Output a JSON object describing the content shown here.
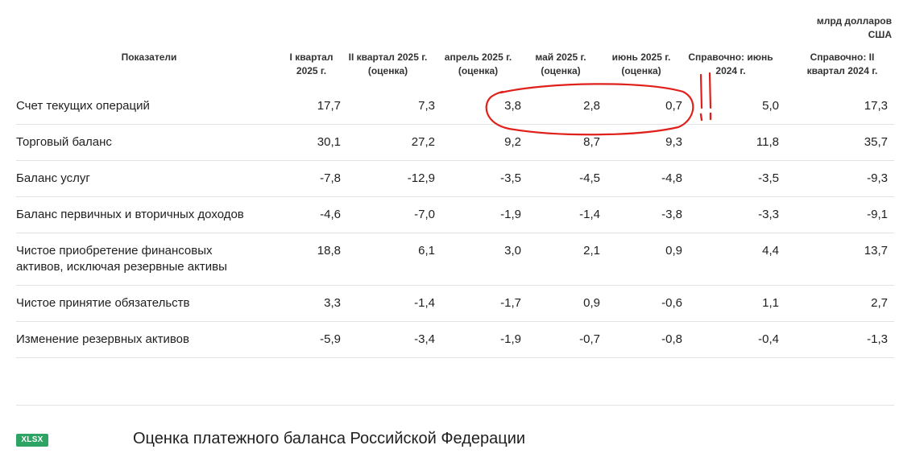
{
  "unit_label": "млрд долларов США",
  "columns": [
    "Показатели",
    "I квартал 2025 г.",
    "II квартал 2025 г. (оценка)",
    "апрель 2025 г. (оценка)",
    "май 2025 г. (оценка)",
    "июнь 2025 г. (оценка)",
    "Справочно: июнь 2024 г.",
    "Справочно: II квартал 2024 г."
  ],
  "rows": [
    {
      "name": "Счет текущих операций",
      "values": [
        "17,7",
        "7,3",
        "3,8",
        "2,8",
        "0,7",
        "5,0",
        "17,3"
      ]
    },
    {
      "name": "Торговый баланс",
      "values": [
        "30,1",
        "27,2",
        "9,2",
        "8,7",
        "9,3",
        "11,8",
        "35,7"
      ]
    },
    {
      "name": "Баланс услуг",
      "values": [
        "-7,8",
        "-12,9",
        "-3,5",
        "-4,5",
        "-4,8",
        "-3,5",
        "-9,3"
      ]
    },
    {
      "name": "Баланс первичных и вторичных доходов",
      "values": [
        "-4,6",
        "-7,0",
        "-1,9",
        "-1,4",
        "-3,8",
        "-3,3",
        "-9,1"
      ]
    },
    {
      "name": "Чистое приобретение финансовых активов, исключая резервные активы",
      "values": [
        "18,8",
        "6,1",
        "3,0",
        "2,1",
        "0,9",
        "4,4",
        "13,7"
      ]
    },
    {
      "name": "Чистое принятие обязательств",
      "values": [
        "3,3",
        "-1,4",
        "-1,7",
        "0,9",
        "-0,6",
        "1,1",
        "2,7"
      ]
    },
    {
      "name": "Изменение резервных активов",
      "values": [
        "-5,9",
        "-3,4",
        "-1,9",
        "-0,7",
        "-0,8",
        "-0,4",
        "-1,3"
      ]
    }
  ],
  "attachment": {
    "badge": "XLSX",
    "title": "Оценка платежного баланса Российской Федерации"
  },
  "colors": {
    "badge_bg": "#2ea464",
    "annotation": "#e0201a"
  }
}
